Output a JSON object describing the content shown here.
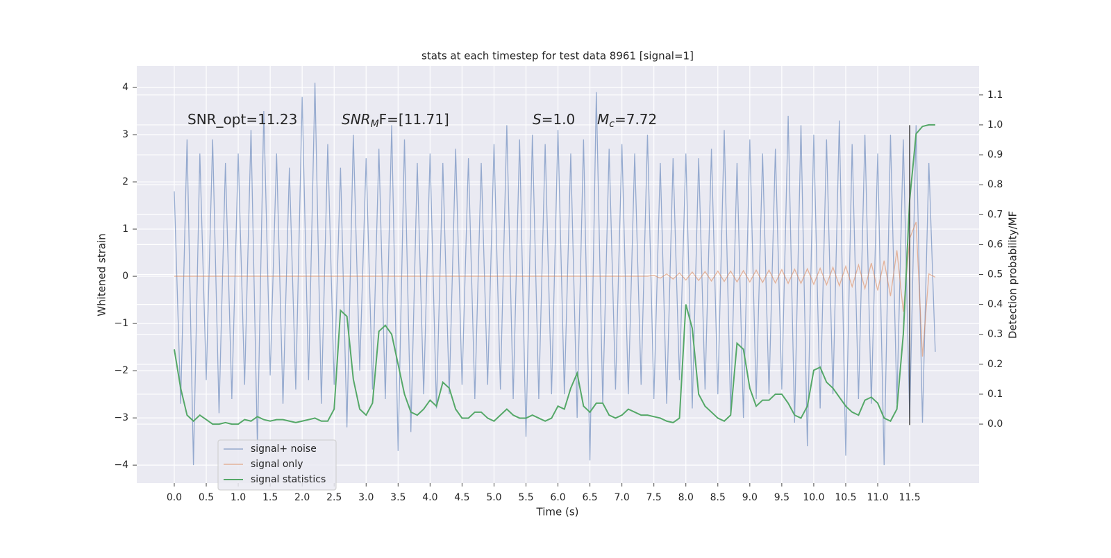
{
  "chart_data": {
    "type": "line",
    "title": "stats at each timestep for test data 8961 [signal=1]",
    "x_label": "Time (s)",
    "y_label": "Whitened strain",
    "y2_label": "Detection probability/MF",
    "grid": true,
    "legend": "lower left",
    "xlim": [
      -0.586,
      12.585
    ],
    "ylim": [
      -4.38,
      4.456
    ],
    "y2lim": [
      -0.197,
      1.197
    ],
    "xticks": [
      {
        "value": 0,
        "label": "0.0"
      },
      0.5,
      {
        "value": 1,
        "label": "1.0"
      },
      1.5,
      {
        "value": 2,
        "label": "2.0"
      },
      2.5,
      {
        "value": 3,
        "label": "3.0"
      },
      3.5,
      {
        "value": 4,
        "label": "4.0"
      },
      4.5,
      {
        "value": 5,
        "label": "5.0"
      },
      5.5,
      {
        "value": 6,
        "label": "6.0"
      },
      6.5,
      {
        "value": 7,
        "label": "7.0"
      },
      7.5,
      {
        "value": 8,
        "label": "8.0"
      },
      8.5,
      {
        "value": 9,
        "label": "9.0"
      },
      9.5,
      {
        "value": 10,
        "label": "10.0"
      },
      10.5,
      {
        "value": 11,
        "label": "11.0"
      },
      11.5
    ],
    "yticks": [
      {
        "value": -4,
        "label": "−4"
      },
      {
        "value": -3,
        "label": "−3"
      },
      {
        "value": -2,
        "label": "−2"
      },
      {
        "value": -1,
        "label": "−1"
      },
      0,
      1,
      2,
      3,
      4
    ],
    "y2ticks": [
      {
        "value": 0,
        "label": "0.0"
      },
      0.1,
      0.2,
      0.3,
      0.4,
      0.5,
      0.6,
      0.7,
      0.8,
      0.9,
      {
        "value": 1,
        "label": "1.0"
      },
      1.1
    ],
    "annotations": [
      {
        "rest": "SNR_opt=11.23"
      },
      {
        "base": "SNR",
        "sub": "M",
        "rest": "F=[11.71]"
      },
      {
        "base": "S",
        "rest": "=1.0"
      },
      {
        "base": "M",
        "sub": "c",
        "rest": "=7.72"
      }
    ],
    "vline": {
      "x": 11.5,
      "ymin": -3.15,
      "ymax": 3.2,
      "color": "#3a3a3a"
    },
    "x": [
      0,
      0.1,
      0.2,
      0.3,
      0.4,
      0.5,
      0.6,
      0.7,
      0.8,
      0.9,
      1,
      1.1,
      1.2,
      1.3,
      1.4,
      1.5,
      1.6,
      1.7,
      1.8,
      1.9,
      2,
      2.1,
      2.2,
      2.3,
      2.4,
      2.5,
      2.6,
      2.7,
      2.8,
      2.9,
      3,
      3.1,
      3.2,
      3.3,
      3.4,
      3.5,
      3.6,
      3.7,
      3.8,
      3.9,
      4,
      4.1,
      4.2,
      4.3,
      4.4,
      4.5,
      4.6,
      4.7,
      4.8,
      4.9,
      5,
      5.1,
      5.2,
      5.3,
      5.4,
      5.5,
      5.6,
      5.7,
      5.8,
      5.9,
      6,
      6.1,
      6.2,
      6.3,
      6.4,
      6.5,
      6.6,
      6.7,
      6.8,
      6.9,
      7,
      7.1,
      7.2,
      7.3,
      7.4,
      7.5,
      7.6,
      7.7,
      7.8,
      7.9,
      8,
      8.1,
      8.2,
      8.3,
      8.4,
      8.5,
      8.6,
      8.7,
      8.8,
      8.9,
      9,
      9.1,
      9.2,
      9.3,
      9.4,
      9.5,
      9.6,
      9.7,
      9.8,
      9.9,
      10,
      10.1,
      10.2,
      10.3,
      10.4,
      10.5,
      10.6,
      10.7,
      10.8,
      10.9,
      11,
      11.1,
      11.2,
      11.3,
      11.4,
      11.5,
      11.6,
      11.7,
      11.8,
      11.9
    ],
    "series": [
      {
        "name": "signal+ noise",
        "color": "#4c72b0",
        "values": [
          1.8,
          -2.7,
          2.9,
          -4.0,
          2.6,
          -2.2,
          2.9,
          -2.9,
          2.4,
          -2.6,
          2.6,
          -2.3,
          3.1,
          -3.6,
          3.5,
          -2.1,
          2.6,
          -2.7,
          2.3,
          -2.4,
          3.8,
          -2.2,
          4.1,
          -2.7,
          2.8,
          -2.3,
          2.3,
          -3.2,
          3.0,
          -2.0,
          2.5,
          -2.4,
          2.7,
          -2.6,
          3.2,
          -3.7,
          2.9,
          -3.3,
          2.4,
          -2.5,
          2.6,
          -2.8,
          2.4,
          -2.5,
          2.7,
          -2.3,
          2.5,
          -2.6,
          2.4,
          -2.3,
          2.8,
          -2.4,
          3.2,
          -2.6,
          2.9,
          -3.4,
          3.0,
          -2.6,
          2.8,
          -2.5,
          3.1,
          -2.5,
          2.6,
          -3.0,
          2.9,
          -3.9,
          3.9,
          -2.7,
          2.7,
          -2.4,
          2.8,
          -2.5,
          2.6,
          -2.3,
          3.0,
          -2.6,
          2.4,
          -2.7,
          2.5,
          -2.2,
          2.6,
          -2.8,
          2.5,
          -2.4,
          2.7,
          -2.5,
          3.1,
          -2.9,
          2.4,
          -3.0,
          2.9,
          -2.6,
          2.6,
          -2.5,
          2.7,
          -2.4,
          3.4,
          -3.1,
          3.2,
          -3.6,
          3.0,
          -2.8,
          2.9,
          -2.5,
          3.3,
          -3.8,
          2.8,
          -2.6,
          3.0,
          -2.7,
          2.6,
          -4.0,
          3.0,
          -2.7,
          2.9,
          -3.0,
          3.2,
          -3.1,
          2.4,
          -1.6
        ]
      },
      {
        "name": "signal only",
        "color": "#dd8452",
        "values": [
          0,
          0,
          0,
          0,
          0,
          0,
          0,
          0,
          0,
          0,
          0,
          0,
          0,
          0,
          0,
          0,
          0,
          0,
          0,
          0,
          0,
          0,
          0,
          0,
          0,
          0,
          0,
          0,
          0,
          0,
          0,
          0,
          0,
          0,
          0,
          0,
          0,
          0,
          0,
          0,
          0,
          0,
          0,
          0,
          0,
          0,
          0,
          0,
          0,
          0,
          0,
          0,
          0,
          0,
          0,
          0,
          0,
          0,
          0,
          0,
          0,
          0,
          0,
          0,
          0,
          0,
          0,
          0,
          0,
          0,
          0,
          0,
          0,
          0,
          0,
          0.02,
          -0.04,
          0.05,
          -0.06,
          0.07,
          -0.08,
          0.09,
          -0.09,
          0.1,
          -0.1,
          0.11,
          -0.11,
          0.11,
          -0.12,
          0.12,
          -0.12,
          0.13,
          -0.13,
          0.13,
          -0.14,
          0.14,
          -0.15,
          0.15,
          -0.15,
          0.16,
          -0.17,
          0.17,
          -0.18,
          0.19,
          -0.2,
          0.21,
          -0.22,
          0.24,
          -0.26,
          0.28,
          -0.3,
          0.33,
          -0.42,
          0.55,
          -0.75,
          0.8,
          1.15,
          -1.7,
          0.05,
          -0.02
        ]
      },
      {
        "name": "signal statistics",
        "color": "#55a868",
        "axis": "y2",
        "values": [
          0.25,
          0.12,
          0.03,
          0.01,
          0.03,
          0.015,
          0,
          0,
          0.005,
          0,
          0,
          0.015,
          0.01,
          0.025,
          0.015,
          0.01,
          0.015,
          0.015,
          0.01,
          0.005,
          0.01,
          0.015,
          0.02,
          0.01,
          0.01,
          0.05,
          0.38,
          0.36,
          0.15,
          0.05,
          0.03,
          0.07,
          0.31,
          0.33,
          0.3,
          0.2,
          0.1,
          0.04,
          0.03,
          0.05,
          0.08,
          0.06,
          0.14,
          0.12,
          0.05,
          0.02,
          0.02,
          0.04,
          0.04,
          0.02,
          0.01,
          0.03,
          0.05,
          0.03,
          0.02,
          0.02,
          0.03,
          0.02,
          0.01,
          0.02,
          0.06,
          0.05,
          0.12,
          0.17,
          0.06,
          0.04,
          0.07,
          0.07,
          0.03,
          0.02,
          0.03,
          0.05,
          0.04,
          0.03,
          0.03,
          0.025,
          0.02,
          0.01,
          0.005,
          0.02,
          0.4,
          0.32,
          0.1,
          0.06,
          0.04,
          0.02,
          0.01,
          0.03,
          0.27,
          0.25,
          0.12,
          0.06,
          0.08,
          0.08,
          0.1,
          0.1,
          0.07,
          0.03,
          0.02,
          0.06,
          0.18,
          0.19,
          0.14,
          0.12,
          0.09,
          0.06,
          0.04,
          0.03,
          0.08,
          0.09,
          0.07,
          0.02,
          0.01,
          0.05,
          0.3,
          0.75,
          0.97,
          0.995,
          1,
          1
        ]
      }
    ]
  }
}
